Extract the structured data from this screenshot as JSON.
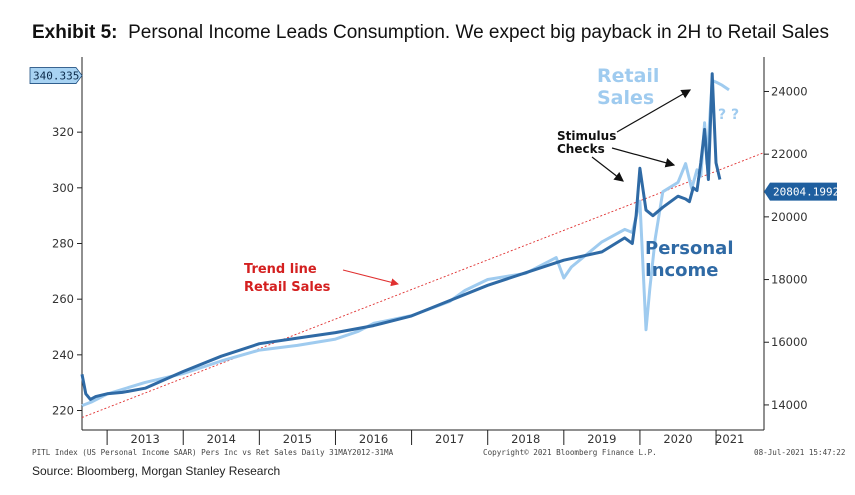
{
  "title": {
    "exhibit": "Exhibit 5:",
    "text": "Personal Income Leads Consumption. We expect big payback in 2H to Retail Sales"
  },
  "source": "Source: Bloomberg, Morgan Stanley Research",
  "footer": {
    "left": "PITL Index (US Personal Income SAAR) Pers Inc vs Ret Sales  Daily 31MAY2012-31MA",
    "center": "Copyright© 2021 Bloomberg Finance L.P.",
    "right": "08-Jul-2021 15:47:22"
  },
  "annotations": {
    "retail_sales": [
      "Retail",
      "Sales"
    ],
    "question": "? ?",
    "stimulus": [
      "Stimulus",
      "Checks"
    ],
    "personal_income": [
      "Personal",
      "Income"
    ],
    "trend": [
      "Trend line",
      "Retail Sales"
    ]
  },
  "colors": {
    "personal_income": "#2f6aa5",
    "retail_sales": "#9fcbef",
    "trend": "#e03030",
    "trend_label": "#d42020",
    "badge_fill": "#1f5f9f",
    "left_badge_fill": "#a8d3f3"
  },
  "chart_data": {
    "type": "line",
    "x_axis": {
      "ticks": [
        "2013",
        "2014",
        "2015",
        "2016",
        "2017",
        "2018",
        "2019",
        "2020",
        "2021"
      ],
      "range": [
        2012.67,
        2021.63
      ],
      "grid": false
    },
    "y_left": {
      "ticks": [
        220,
        240,
        260,
        280,
        300,
        320
      ],
      "range": [
        213,
        347
      ]
    },
    "y_right": {
      "ticks": [
        14000,
        16000,
        18000,
        20000,
        22000,
        24000
      ],
      "range": [
        13200,
        25100
      ]
    },
    "last_value_badges": {
      "left": "340.335",
      "right": "20804.1992"
    },
    "series": [
      {
        "name": "Personal Income",
        "axis": "left",
        "x": [
          2012.67,
          2012.72,
          2012.78,
          2012.85,
          2013.0,
          2013.2,
          2013.5,
          2014.0,
          2014.5,
          2015.0,
          2015.5,
          2016.0,
          2016.5,
          2017.0,
          2017.5,
          2018.0,
          2018.5,
          2019.0,
          2019.5,
          2019.8,
          2019.9,
          2019.95,
          2020.0,
          2020.08,
          2020.17,
          2020.3,
          2020.5,
          2020.6,
          2020.65,
          2020.7,
          2020.75,
          2020.8,
          2020.85,
          2020.9,
          2020.95,
          2021.0,
          2021.05
        ],
        "y": [
          233,
          226,
          224,
          225,
          226,
          226.5,
          228,
          234,
          239.5,
          244,
          246,
          248,
          250.5,
          254,
          259.5,
          265,
          269.5,
          274,
          277,
          282,
          280,
          290,
          307,
          292,
          290,
          293,
          297,
          296,
          295,
          300,
          299,
          309,
          321,
          303,
          341,
          309,
          303
        ]
      },
      {
        "name": "Retail Sales",
        "axis": "right",
        "x": [
          2012.67,
          2012.8,
          2013.0,
          2013.5,
          2014.0,
          2014.5,
          2015.0,
          2015.5,
          2016.0,
          2016.3,
          2016.5,
          2017.0,
          2017.5,
          2017.7,
          2018.0,
          2018.5,
          2018.9,
          2019.0,
          2019.1,
          2019.5,
          2019.8,
          2019.9,
          2020.0,
          2020.08,
          2020.13,
          2020.2,
          2020.3,
          2020.5,
          2020.6,
          2020.68,
          2020.75,
          2020.8,
          2020.85,
          2020.88,
          2020.95,
          2021.0,
          2021.08,
          2021.17
        ],
        "y": [
          13980,
          14100,
          14350,
          14720,
          15000,
          15400,
          15750,
          15900,
          16100,
          16350,
          16600,
          16850,
          17300,
          17650,
          18000,
          18200,
          18700,
          18050,
          18400,
          19200,
          19600,
          19500,
          20500,
          16400,
          17700,
          19300,
          20800,
          21100,
          21700,
          20900,
          21500,
          21300,
          23000,
          21700,
          24350,
          24300,
          24200,
          24050
        ]
      },
      {
        "name": "Trend line",
        "axis": "right",
        "style": "dotted",
        "x": [
          2012.67,
          2021.63
        ],
        "y": [
          13600,
          22050
        ]
      }
    ]
  }
}
